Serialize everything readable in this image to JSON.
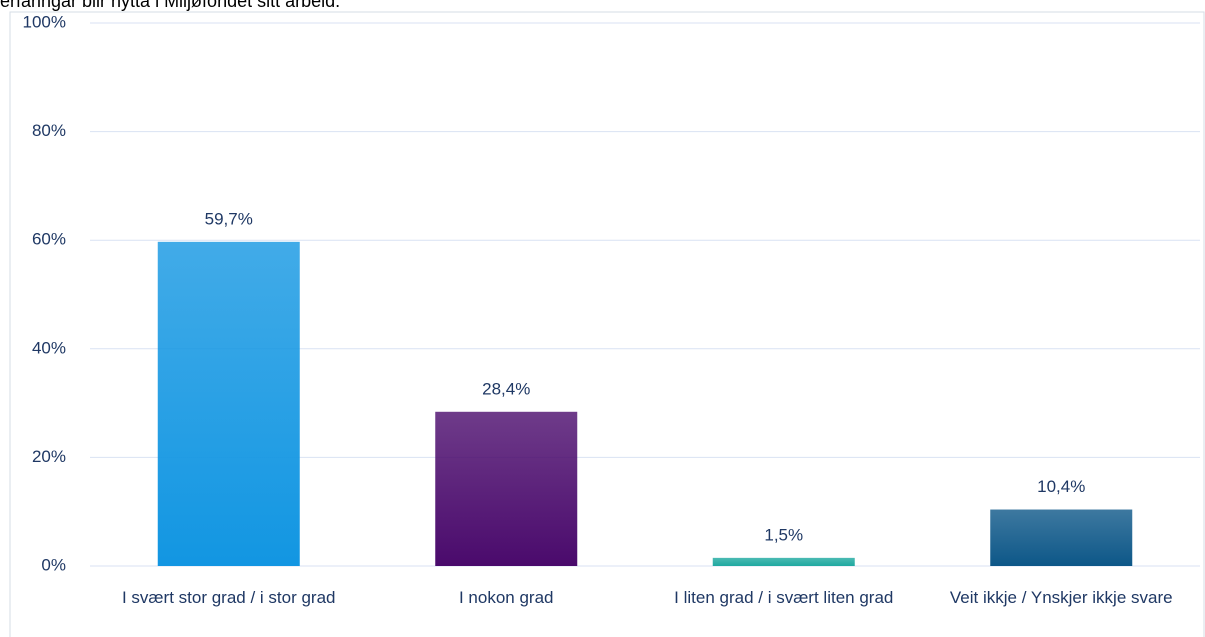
{
  "chart_data": {
    "type": "bar",
    "title": "erfaringar blir nytta i Miljøfondet sitt arbeid.",
    "categories": [
      "I svært stor grad / i stor grad",
      "I nokon grad",
      "I liten grad / i svært liten grad",
      "Veit ikkje / Ynskjer ikkje svare"
    ],
    "values": [
      59.7,
      28.4,
      1.5,
      10.4
    ],
    "value_labels": [
      "59,7%",
      "28,4%",
      "1,5%",
      "10,4%"
    ],
    "colors": [
      "#1296e2",
      "#4a0a6c",
      "#1fa9a0",
      "#0d5788"
    ],
    "ylim": [
      0,
      100
    ],
    "yticks": [
      {
        "value": 0,
        "label": "0%"
      },
      {
        "value": 20,
        "label": "20%"
      },
      {
        "value": 40,
        "label": "40%"
      },
      {
        "value": 60,
        "label": "60%"
      },
      {
        "value": 80,
        "label": "80%"
      },
      {
        "value": 100,
        "label": "100%"
      }
    ],
    "grid": true
  }
}
